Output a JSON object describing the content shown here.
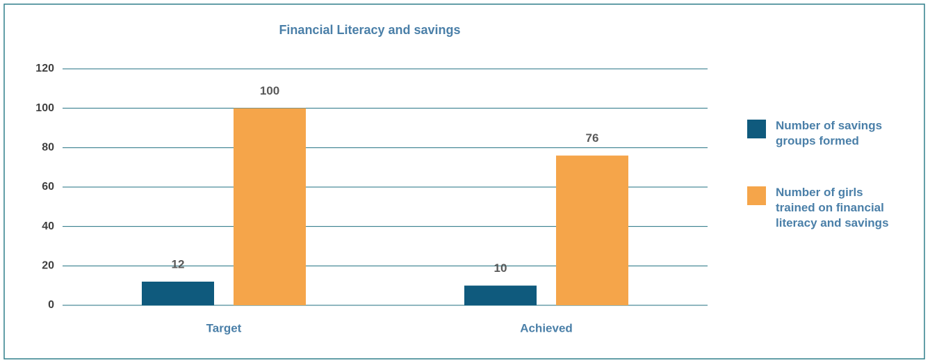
{
  "chart_data": {
    "type": "bar",
    "title": "Financial Literacy and savings",
    "categories": [
      "Target",
      "Achieved"
    ],
    "series": [
      {
        "name": "Number of savings groups formed",
        "color": "#0f5a7d",
        "values": [
          12,
          10
        ]
      },
      {
        "name": "Number of girls trained on financial literacy and savings",
        "color": "#f5a54a",
        "values": [
          100,
          76
        ]
      }
    ],
    "ylim": [
      0,
      120
    ],
    "yticks": [
      0,
      20,
      40,
      60,
      80,
      100,
      120
    ],
    "grid": true,
    "legend": "right"
  }
}
